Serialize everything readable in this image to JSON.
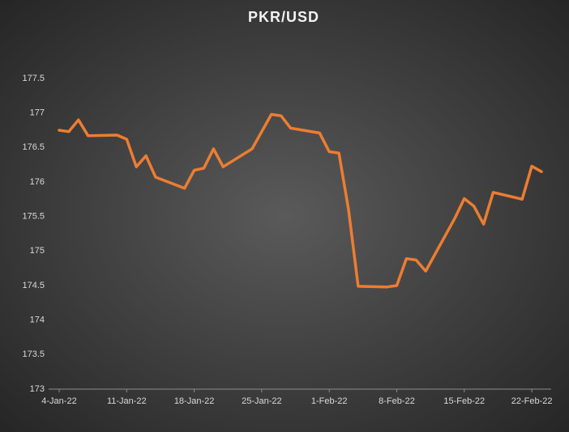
{
  "chart_data": {
    "type": "line",
    "title": "PKR/USD",
    "x": [
      "2022-01-04",
      "2022-01-05",
      "2022-01-06",
      "2022-01-07",
      "2022-01-10",
      "2022-01-11",
      "2022-01-12",
      "2022-01-13",
      "2022-01-14",
      "2022-01-17",
      "2022-01-18",
      "2022-01-19",
      "2022-01-20",
      "2022-01-21",
      "2022-01-24",
      "2022-01-25",
      "2022-01-26",
      "2022-01-27",
      "2022-01-28",
      "2022-01-31",
      "2022-02-01",
      "2022-02-02",
      "2022-02-03",
      "2022-02-04",
      "2022-02-07",
      "2022-02-08",
      "2022-02-09",
      "2022-02-10",
      "2022-02-11",
      "2022-02-14",
      "2022-02-15",
      "2022-02-16",
      "2022-02-17",
      "2022-02-18",
      "2022-02-21",
      "2022-02-22",
      "2022-02-23"
    ],
    "series": [
      {
        "name": "PKR/USD",
        "color": "#ed7d31",
        "values": [
          176.75,
          176.73,
          176.9,
          176.67,
          176.68,
          176.62,
          176.22,
          176.38,
          176.07,
          175.91,
          176.17,
          176.2,
          176.48,
          176.22,
          176.48,
          176.73,
          176.98,
          176.96,
          176.78,
          176.71,
          176.44,
          176.42,
          175.6,
          174.49,
          174.48,
          174.5,
          174.89,
          174.87,
          174.71,
          175.47,
          175.76,
          175.65,
          175.39,
          175.85,
          175.75,
          176.23,
          176.15
        ]
      }
    ],
    "xlim": [
      "2022-01-04",
      "2022-02-23"
    ],
    "xticks": [
      {
        "value": "2022-01-04",
        "label": "4-Jan-22"
      },
      {
        "value": "2022-01-11",
        "label": "11-Jan-22"
      },
      {
        "value": "2022-01-18",
        "label": "18-Jan-22"
      },
      {
        "value": "2022-01-25",
        "label": "25-Jan-22"
      },
      {
        "value": "2022-02-01",
        "label": "1-Feb-22"
      },
      {
        "value": "2022-02-08",
        "label": "8-Feb-22"
      },
      {
        "value": "2022-02-15",
        "label": "15-Feb-22"
      },
      {
        "value": "2022-02-22",
        "label": "22-Feb-22"
      }
    ],
    "ylim": [
      173,
      177.5
    ],
    "yticks": [
      173,
      173.5,
      174,
      174.5,
      175,
      175.5,
      176,
      176.5,
      177,
      177.5
    ],
    "grid": false
  }
}
